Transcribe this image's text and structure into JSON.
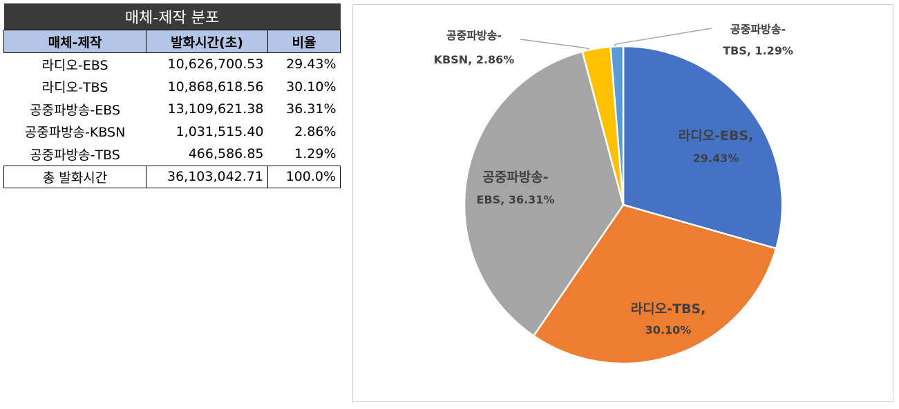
{
  "table": {
    "title": "매체-제작 분포",
    "headers": [
      "매체-제작",
      "발화시간(초)",
      "비율"
    ],
    "rows": [
      {
        "name": "라디오-EBS",
        "time": "10,626,700.53",
        "ratio": "29.43%"
      },
      {
        "name": "라디오-TBS",
        "time": "10,868,618.56",
        "ratio": "30.10%"
      },
      {
        "name": "공중파방송-EBS",
        "time": "13,109,621.38",
        "ratio": "36.31%"
      },
      {
        "name": "공중파방송-KBSN",
        "time": "1,031,515.40",
        "ratio": "2.86%"
      },
      {
        "name": "공중파방송-TBS",
        "time": "466,586.85",
        "ratio": "1.29%"
      }
    ],
    "total": {
      "name": "총 발화시간",
      "time": "36,103,042.71",
      "ratio": "100.0%"
    }
  },
  "chart_data": {
    "type": "pie",
    "title": "",
    "slices": [
      {
        "label_top": "라디오-EBS,",
        "label_bottom": "29.43%",
        "value": 29.43,
        "color": "#4472c4"
      },
      {
        "label_top": "라디오-TBS,",
        "label_bottom": "30.10%",
        "value": 30.1,
        "color": "#ed7d31"
      },
      {
        "label_top": "공중파방송-",
        "label_bottom": "EBS, 36.31%",
        "value": 36.31,
        "color": "#a5a5a5"
      },
      {
        "label_top": "공중파방송-",
        "label_bottom": "KBSN, 2.86%",
        "value": 2.86,
        "color": "#ffc000"
      },
      {
        "label_top": "공중파방송-",
        "label_bottom": "TBS, 1.29%",
        "value": 1.29,
        "color": "#5b9bd5"
      }
    ],
    "start_angle": "12 o'clock",
    "direction": "clockwise",
    "legend": "none",
    "label_line_color": "#a6a6a6"
  }
}
